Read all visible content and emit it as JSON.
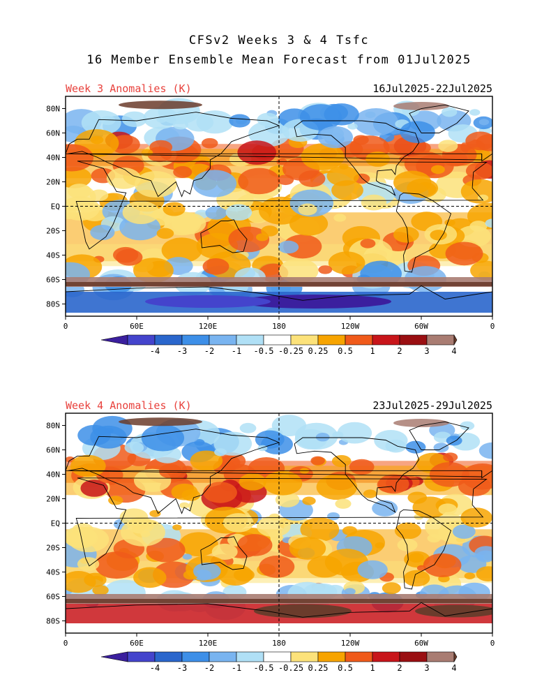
{
  "title": {
    "line1": "CFSv2 Weeks 3 & 4 Tsfc",
    "line2": "16 Member Ensemble Mean Forecast from 01Jul2025"
  },
  "panels": [
    {
      "label": "Week 3 Anomalies (K)",
      "dates": "16Jul2025-22Jul2025"
    },
    {
      "label": "Week 4 Anomalies (K)",
      "dates": "23Jul2025-29Jul2025"
    }
  ],
  "axes": {
    "y_ticks": [
      "80N",
      "60N",
      "40N",
      "20N",
      "EQ",
      "20S",
      "40S",
      "60S",
      "80S"
    ],
    "x_ticks": [
      "0",
      "60E",
      "120E",
      "180",
      "120W",
      "60W",
      "0"
    ]
  },
  "colorbar": {
    "labels": [
      "-4",
      "-3",
      "-2",
      "-1",
      "-0.5",
      "-0.25",
      "0.25",
      "0.5",
      "1",
      "2",
      "3",
      "4"
    ],
    "colors": [
      "#3b1f9e",
      "#4444cc",
      "#2a66cc",
      "#3d8fe8",
      "#79b4f0",
      "#b0e0f6",
      "#ffffff",
      "#fce27a",
      "#f7a400",
      "#f05a1a",
      "#c8151a",
      "#9a0f12",
      "#a97c72",
      "#6b3c2c"
    ]
  }
}
